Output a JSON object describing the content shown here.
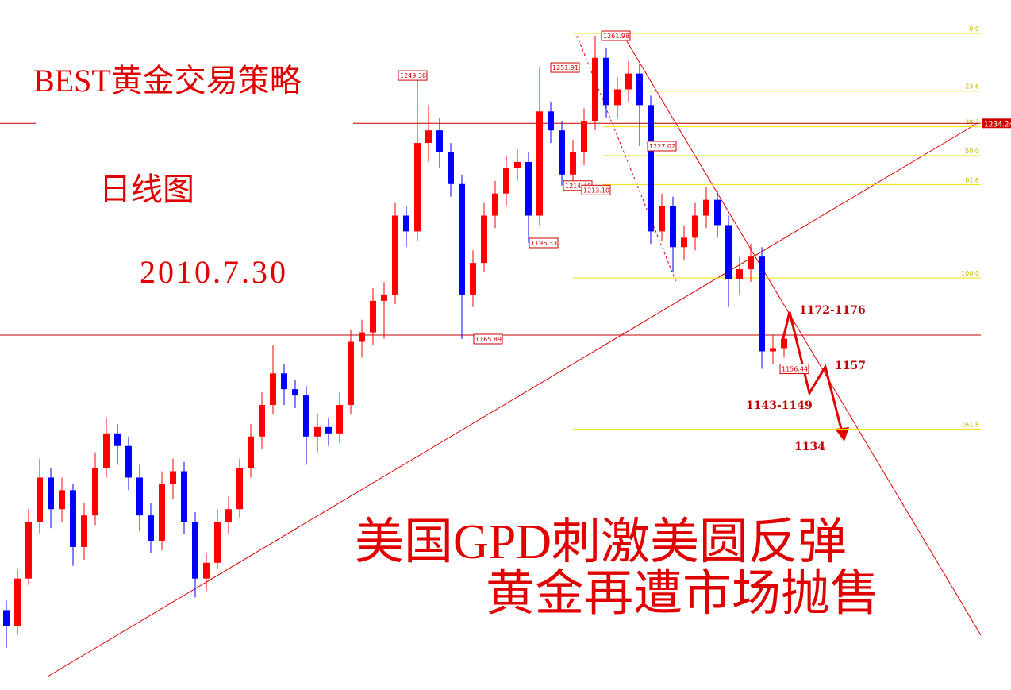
{
  "chart_data": {
    "type": "candlestick",
    "title": "BEST黄金交易策略",
    "subtitle": "日线图",
    "date": "2010.7.30",
    "headline": [
      "美国GPD刺激美圆反弹",
      "黄金再遭市场抛售"
    ],
    "ylim": [
      1054.7,
      1273.3
    ],
    "up_color": "#ff0000",
    "down_color": "#0000ff",
    "candles": [
      [
        1080,
        1083,
        1068,
        1075
      ],
      [
        1075,
        1093,
        1072,
        1090
      ],
      [
        1090,
        1112,
        1088,
        1108
      ],
      [
        1108,
        1128,
        1104,
        1122
      ],
      [
        1122,
        1125,
        1106,
        1112
      ],
      [
        1112,
        1122,
        1108,
        1118
      ],
      [
        1118,
        1120,
        1094,
        1100
      ],
      [
        1100,
        1114,
        1096,
        1110
      ],
      [
        1110,
        1130,
        1107,
        1125
      ],
      [
        1125,
        1141,
        1122,
        1136
      ],
      [
        1136,
        1139,
        1126,
        1132
      ],
      [
        1132,
        1135,
        1118,
        1122
      ],
      [
        1122,
        1126,
        1105,
        1110
      ],
      [
        1110,
        1114,
        1098,
        1102
      ],
      [
        1102,
        1124,
        1099,
        1120
      ],
      [
        1120,
        1128,
        1115,
        1124
      ],
      [
        1124,
        1127,
        1104,
        1108
      ],
      [
        1108,
        1111,
        1084,
        1090
      ],
      [
        1090,
        1098,
        1086,
        1095
      ],
      [
        1095,
        1112,
        1093,
        1108
      ],
      [
        1108,
        1116,
        1104,
        1112
      ],
      [
        1112,
        1128,
        1109,
        1125
      ],
      [
        1125,
        1139,
        1122,
        1135
      ],
      [
        1135,
        1149,
        1131,
        1145
      ],
      [
        1145,
        1164,
        1142,
        1155
      ],
      [
        1155,
        1158,
        1145,
        1150
      ],
      [
        1150,
        1153,
        1144,
        1148
      ],
      [
        1148,
        1151,
        1126,
        1135
      ],
      [
        1135,
        1142,
        1130,
        1138
      ],
      [
        1138,
        1141,
        1132,
        1136
      ],
      [
        1136,
        1149,
        1133,
        1145
      ],
      [
        1145,
        1169,
        1142,
        1165
      ],
      [
        1165,
        1172,
        1160,
        1168
      ],
      [
        1168,
        1182,
        1164,
        1178
      ],
      [
        1178,
        1184,
        1166,
        1180
      ],
      [
        1180,
        1209,
        1177,
        1205
      ],
      [
        1205,
        1208,
        1195,
        1200
      ],
      [
        1200,
        1249.38,
        1197,
        1228
      ],
      [
        1228,
        1240,
        1222,
        1232
      ],
      [
        1232,
        1236,
        1220,
        1225
      ],
      [
        1225,
        1228,
        1211,
        1215
      ],
      [
        1215,
        1218,
        1165.89,
        1180
      ],
      [
        1180,
        1194,
        1176,
        1190
      ],
      [
        1190,
        1209,
        1187,
        1205
      ],
      [
        1205,
        1216,
        1201,
        1212
      ],
      [
        1212,
        1224,
        1208,
        1220
      ],
      [
        1220,
        1226,
        1216,
        1222
      ],
      [
        1222,
        1225,
        1196.33,
        1205
      ],
      [
        1205,
        1251.91,
        1202,
        1238
      ],
      [
        1238,
        1241,
        1228,
        1232
      ],
      [
        1232,
        1235,
        1214.49,
        1218
      ],
      [
        1218,
        1229,
        1213.1,
        1225
      ],
      [
        1225,
        1239,
        1221,
        1235
      ],
      [
        1235,
        1261.98,
        1232,
        1255
      ],
      [
        1255,
        1258,
        1236,
        1240
      ],
      [
        1240,
        1249,
        1236,
        1245
      ],
      [
        1245,
        1254,
        1241,
        1250
      ],
      [
        1250,
        1253,
        1227.02,
        1240
      ],
      [
        1240,
        1243,
        1196,
        1200
      ],
      [
        1200,
        1212,
        1197,
        1208
      ],
      [
        1208,
        1211,
        1187,
        1195
      ],
      [
        1195,
        1202,
        1191,
        1198
      ],
      [
        1198,
        1209,
        1194,
        1205
      ],
      [
        1205,
        1214,
        1201,
        1210
      ],
      [
        1210,
        1213,
        1198,
        1202
      ],
      [
        1202,
        1205,
        1176,
        1185
      ],
      [
        1185,
        1192,
        1180,
        1188
      ],
      [
        1188,
        1196,
        1184,
        1192
      ],
      [
        1192,
        1195,
        1156.44,
        1162
      ],
      [
        1162,
        1167,
        1158,
        1163
      ],
      [
        1163,
        1168,
        1160,
        1166
      ]
    ],
    "price_labels": [
      1249.38,
      1251.91,
      1261.98,
      1227.02,
      1214.49,
      {
        "value": 1213.1,
        "label": "1213.10"
      },
      1196.33,
      1165.89,
      1156.44
    ],
    "marked_level": 1234.24,
    "fib_levels": [
      {
        "value": 0,
        "label": "0.0"
      },
      23.6,
      38.2,
      {
        "value": 50,
        "label": "50.0"
      },
      61.8,
      {
        "value": 100,
        "label": "100.0"
      },
      161.8
    ],
    "targets": [
      "1172-1176",
      "1157",
      "1143-1149",
      "1134"
    ]
  }
}
